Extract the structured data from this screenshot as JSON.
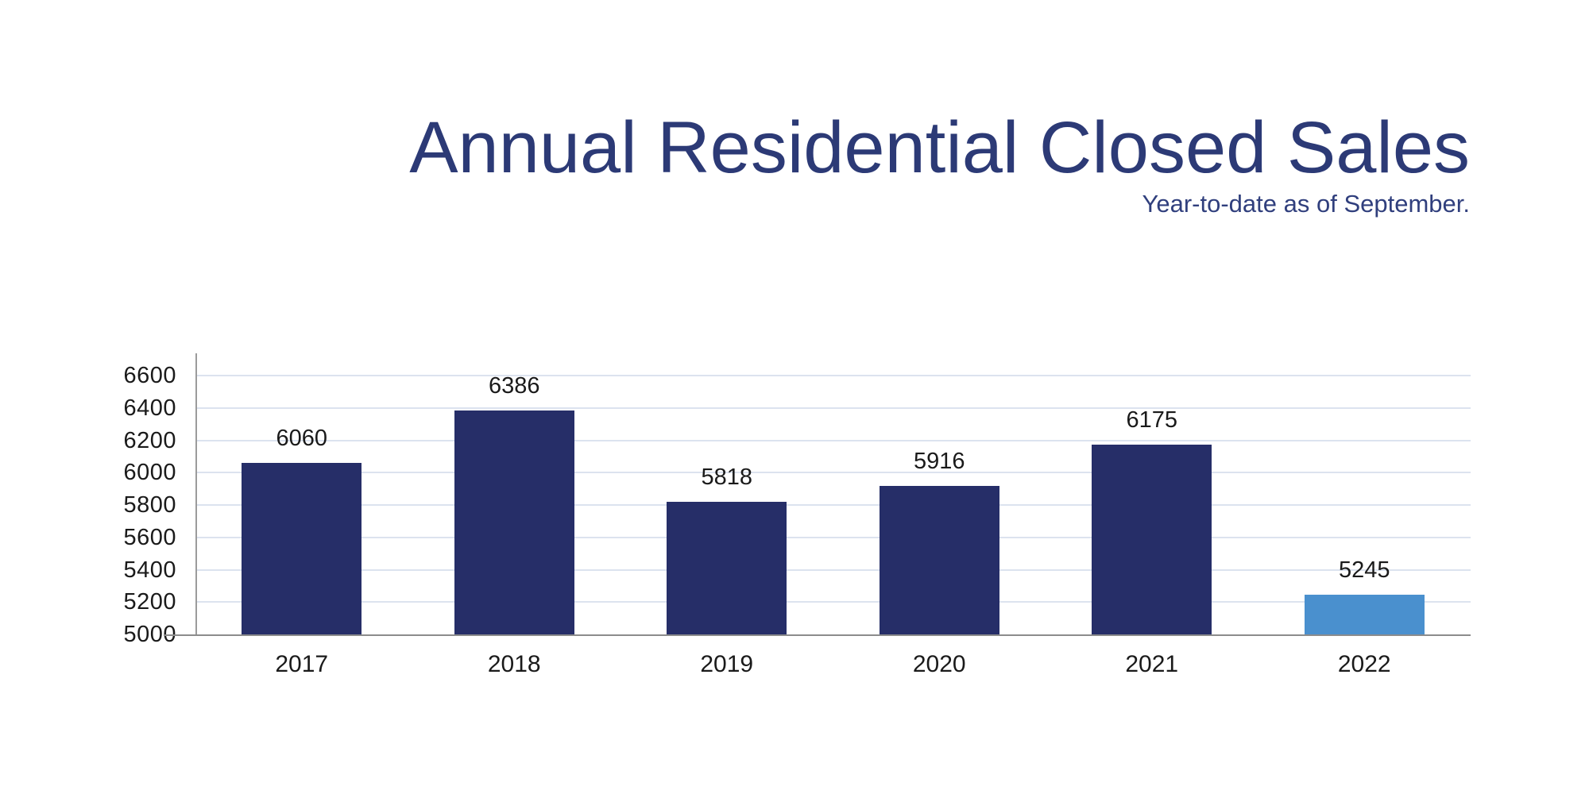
{
  "header": {
    "title": "Annual Residential Closed Sales",
    "subtitle": "Year-to-date as of September."
  },
  "chart_data": {
    "type": "bar",
    "categories": [
      "2017",
      "2018",
      "2019",
      "2020",
      "2021",
      "2022"
    ],
    "values": [
      6060,
      6386,
      5818,
      5916,
      6175,
      5245
    ],
    "data_labels": [
      "6060",
      "6386",
      "5818",
      "5916",
      "6175",
      "5245"
    ],
    "title": "Annual Residential Closed Sales",
    "subtitle": "Year-to-date as of September.",
    "xlabel": "",
    "ylabel": "",
    "ylim": [
      5000,
      6600
    ],
    "yticks": [
      5000,
      5200,
      5400,
      5600,
      5800,
      6000,
      6200,
      6400,
      6600
    ],
    "grid": true,
    "legend": false,
    "bar_colors": [
      "#262e68",
      "#262e68",
      "#262e68",
      "#262e68",
      "#262e68",
      "#4a90ce"
    ]
  },
  "colors": {
    "title": "#2c3a76",
    "subtitle": "#303f7d",
    "bar_navy": "#262e68",
    "bar_highlight_blue": "#4a90ce",
    "gridline": "#dce3ef",
    "y_axis_line": "#9b9b9b",
    "x_axis_line": "#8c8c8c",
    "tick_text": "#1a1a1a"
  }
}
